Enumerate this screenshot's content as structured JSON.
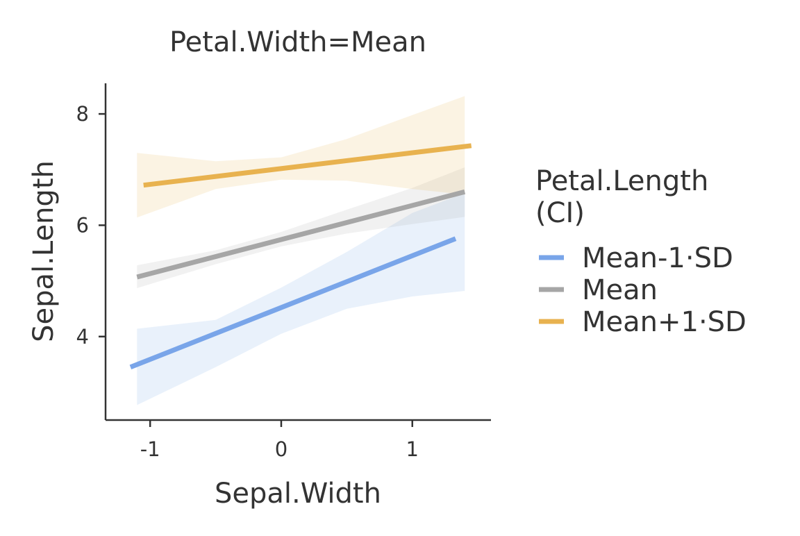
{
  "chart_data": {
    "type": "line",
    "title": "Petal.Width=Mean",
    "xlabel": "Sepal.Width",
    "ylabel": "Sepal.Length",
    "xlim": [
      -1.34,
      1.6
    ],
    "ylim": [
      2.5,
      8.55
    ],
    "x_ticks": [
      -1,
      0,
      1
    ],
    "x_tick_labels": [
      "-1",
      "0",
      "1"
    ],
    "y_ticks": [
      4,
      6,
      8
    ],
    "y_tick_labels": [
      "4",
      "6",
      "8"
    ],
    "grid": false,
    "legend": {
      "title_lines": [
        "Petal.Length",
        "(CI)"
      ],
      "placement": "right"
    },
    "series": [
      {
        "name": "Mean-1·SD",
        "color": "#79a5e9",
        "line": {
          "x": [
            -1.15,
            1.33
          ],
          "y": [
            3.45,
            5.76
          ]
        },
        "ci": {
          "x": [
            -1.1,
            -0.5,
            0,
            0.5,
            1.0,
            1.4
          ],
          "lower": [
            2.77,
            3.45,
            4.05,
            4.5,
            4.72,
            4.82
          ],
          "upper": [
            4.14,
            4.3,
            4.88,
            5.52,
            6.22,
            6.58
          ]
        }
      },
      {
        "name": "Mean",
        "color": "#a6a6a6",
        "line": {
          "x": [
            -1.1,
            1.4
          ],
          "y": [
            5.07,
            6.6
          ]
        },
        "ci": {
          "x": [
            -1.1,
            -0.5,
            0,
            0.5,
            1.0,
            1.4
          ],
          "lower": [
            4.87,
            5.3,
            5.62,
            5.85,
            6.02,
            6.15
          ],
          "upper": [
            5.28,
            5.55,
            5.88,
            6.28,
            6.67,
            7.04
          ]
        }
      },
      {
        "name": "Mean+1·SD",
        "color": "#e8b24f",
        "line": {
          "x": [
            -1.05,
            1.45
          ],
          "y": [
            6.72,
            7.43
          ]
        },
        "ci": {
          "x": [
            -1.1,
            -0.5,
            0,
            0.5,
            1.0,
            1.4
          ],
          "lower": [
            6.14,
            6.65,
            6.82,
            6.8,
            6.65,
            6.55
          ],
          "upper": [
            7.3,
            7.15,
            7.22,
            7.55,
            7.98,
            8.32
          ]
        }
      }
    ]
  }
}
